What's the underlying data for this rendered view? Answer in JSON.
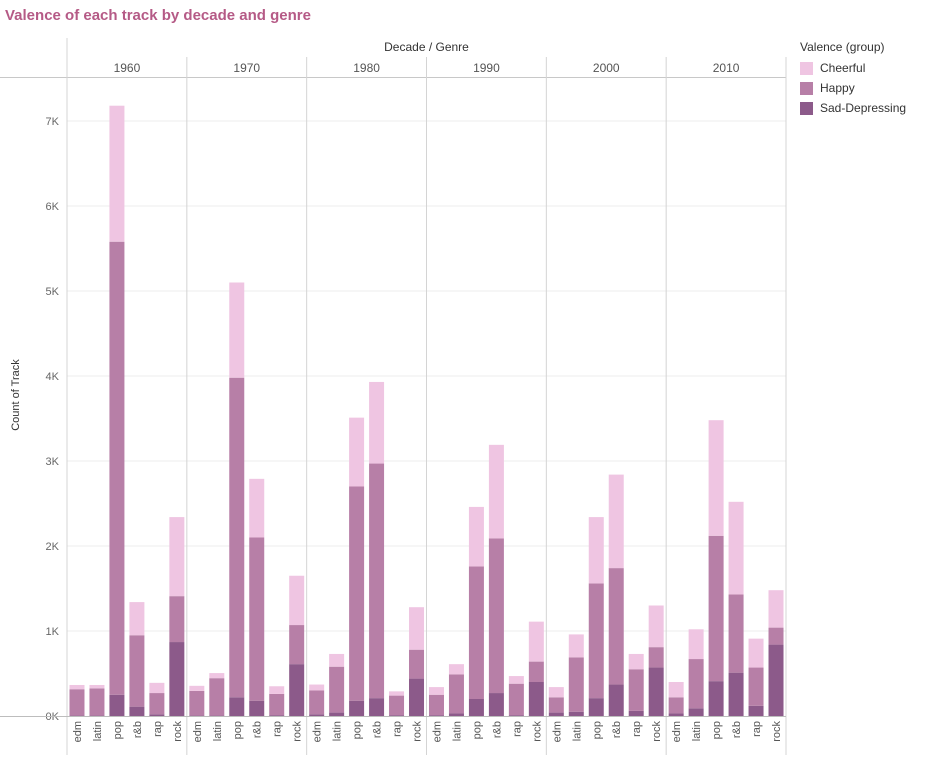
{
  "title": "Valence of each track by decade and genre",
  "legend": {
    "title": "Valence (group)",
    "items": [
      {
        "label": "Cheerful",
        "color": "#efc5e2"
      },
      {
        "label": "Happy",
        "color": "#b77fa7"
      },
      {
        "label": "Sad-Depressing",
        "color": "#8c5a8a"
      }
    ]
  },
  "chart_data": {
    "type": "bar",
    "stacked": true,
    "column_header": "Decade / Genre",
    "ylabel": "Count of Track",
    "ylim": [
      0,
      7600
    ],
    "yticks": [
      0,
      1000,
      2000,
      3000,
      4000,
      5000,
      6000,
      7000
    ],
    "ytick_labels": [
      "0K",
      "1K",
      "2K",
      "3K",
      "4K",
      "5K",
      "6K",
      "7K"
    ],
    "gridlines": true,
    "legend_position": "top-right",
    "decades": [
      "1960",
      "1970",
      "1980",
      "1990",
      "2000",
      "2010"
    ],
    "genres": [
      "edm",
      "latin",
      "pop",
      "r&b",
      "rap",
      "rock"
    ],
    "series_order": [
      "Sad-Depressing",
      "Happy",
      "Cheerful"
    ],
    "groups": [
      {
        "decade": "1960",
        "bars": [
          {
            "genre": "edm",
            "Sad-Depressing": 5,
            "Happy": 310,
            "Cheerful": 50
          },
          {
            "genre": "latin",
            "Sad-Depressing": 5,
            "Happy": 320,
            "Cheerful": 40
          },
          {
            "genre": "pop",
            "Sad-Depressing": 250,
            "Happy": 5330,
            "Cheerful": 1600
          },
          {
            "genre": "r&b",
            "Sad-Depressing": 110,
            "Happy": 840,
            "Cheerful": 390
          },
          {
            "genre": "rap",
            "Sad-Depressing": 20,
            "Happy": 250,
            "Cheerful": 120
          },
          {
            "genre": "rock",
            "Sad-Depressing": 870,
            "Happy": 540,
            "Cheerful": 930
          }
        ]
      },
      {
        "decade": "1970",
        "bars": [
          {
            "genre": "edm",
            "Sad-Depressing": 5,
            "Happy": 290,
            "Cheerful": 60
          },
          {
            "genre": "latin",
            "Sad-Depressing": 5,
            "Happy": 440,
            "Cheerful": 60
          },
          {
            "genre": "pop",
            "Sad-Depressing": 220,
            "Happy": 3760,
            "Cheerful": 1120
          },
          {
            "genre": "r&b",
            "Sad-Depressing": 180,
            "Happy": 1920,
            "Cheerful": 690
          },
          {
            "genre": "rap",
            "Sad-Depressing": 10,
            "Happy": 250,
            "Cheerful": 90
          },
          {
            "genre": "rock",
            "Sad-Depressing": 610,
            "Happy": 460,
            "Cheerful": 580
          }
        ]
      },
      {
        "decade": "1980",
        "bars": [
          {
            "genre": "edm",
            "Sad-Depressing": 20,
            "Happy": 280,
            "Cheerful": 70
          },
          {
            "genre": "latin",
            "Sad-Depressing": 40,
            "Happy": 540,
            "Cheerful": 150
          },
          {
            "genre": "pop",
            "Sad-Depressing": 180,
            "Happy": 2520,
            "Cheerful": 810
          },
          {
            "genre": "r&b",
            "Sad-Depressing": 210,
            "Happy": 2760,
            "Cheerful": 960
          },
          {
            "genre": "rap",
            "Sad-Depressing": 10,
            "Happy": 230,
            "Cheerful": 50
          },
          {
            "genre": "rock",
            "Sad-Depressing": 440,
            "Happy": 340,
            "Cheerful": 500
          }
        ]
      },
      {
        "decade": "1990",
        "bars": [
          {
            "genre": "edm",
            "Sad-Depressing": 10,
            "Happy": 240,
            "Cheerful": 90
          },
          {
            "genre": "latin",
            "Sad-Depressing": 30,
            "Happy": 460,
            "Cheerful": 120
          },
          {
            "genre": "pop",
            "Sad-Depressing": 200,
            "Happy": 1560,
            "Cheerful": 700
          },
          {
            "genre": "r&b",
            "Sad-Depressing": 270,
            "Happy": 1820,
            "Cheerful": 1100
          },
          {
            "genre": "rap",
            "Sad-Depressing": 10,
            "Happy": 370,
            "Cheerful": 90
          },
          {
            "genre": "rock",
            "Sad-Depressing": 400,
            "Happy": 240,
            "Cheerful": 470
          }
        ]
      },
      {
        "decade": "2000",
        "bars": [
          {
            "genre": "edm",
            "Sad-Depressing": 40,
            "Happy": 180,
            "Cheerful": 120
          },
          {
            "genre": "latin",
            "Sad-Depressing": 50,
            "Happy": 640,
            "Cheerful": 270
          },
          {
            "genre": "pop",
            "Sad-Depressing": 210,
            "Happy": 1350,
            "Cheerful": 780
          },
          {
            "genre": "r&b",
            "Sad-Depressing": 370,
            "Happy": 1370,
            "Cheerful": 1100
          },
          {
            "genre": "rap",
            "Sad-Depressing": 60,
            "Happy": 490,
            "Cheerful": 180
          },
          {
            "genre": "rock",
            "Sad-Depressing": 570,
            "Happy": 240,
            "Cheerful": 490
          }
        ]
      },
      {
        "decade": "2010",
        "bars": [
          {
            "genre": "edm",
            "Sad-Depressing": 30,
            "Happy": 190,
            "Cheerful": 180
          },
          {
            "genre": "latin",
            "Sad-Depressing": 90,
            "Happy": 580,
            "Cheerful": 350
          },
          {
            "genre": "pop",
            "Sad-Depressing": 410,
            "Happy": 1710,
            "Cheerful": 1360
          },
          {
            "genre": "r&b",
            "Sad-Depressing": 510,
            "Happy": 920,
            "Cheerful": 1090
          },
          {
            "genre": "rap",
            "Sad-Depressing": 120,
            "Happy": 450,
            "Cheerful": 340
          },
          {
            "genre": "rock",
            "Sad-Depressing": 840,
            "Happy": 200,
            "Cheerful": 440
          }
        ]
      }
    ]
  }
}
